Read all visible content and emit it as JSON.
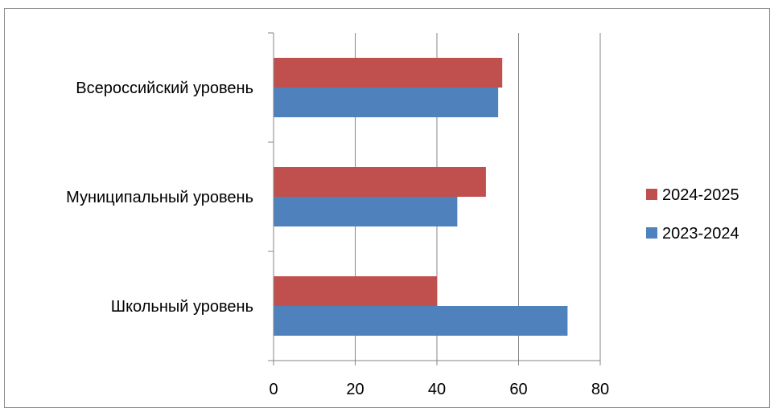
{
  "chart_data": {
    "type": "bar",
    "orientation": "horizontal",
    "title": "",
    "xlabel": "",
    "ylabel": "",
    "categories": [
      "Всероссийский уровень",
      "Муниципальный уровень",
      "Школьный уровень"
    ],
    "series": [
      {
        "name": "2024-2025",
        "values": [
          56,
          52,
          40
        ],
        "color": "#C0504D"
      },
      {
        "name": "2023-2024",
        "values": [
          55,
          45,
          72
        ],
        "color": "#4F81BD"
      }
    ],
    "xlim": [
      0,
      80
    ],
    "x_ticks": [
      "0",
      "20",
      "40",
      "60",
      "80"
    ],
    "grid": "vertical",
    "legend_position": "right"
  }
}
